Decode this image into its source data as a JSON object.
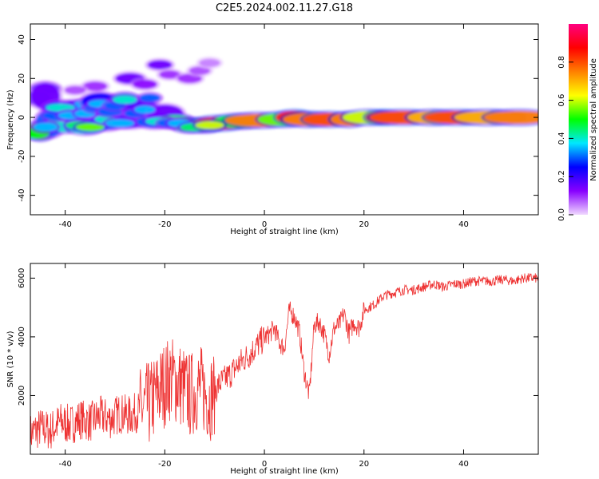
{
  "title": "C2E5.2024.002.11.27.G18",
  "chart_data": [
    {
      "type": "heatmap",
      "xlabel": "Height of straight line (km)",
      "ylabel": "Frequency (Hz)",
      "xlim": [
        -47,
        55
      ],
      "ylim": [
        -50,
        48
      ],
      "xticks": [
        -40,
        -20,
        0,
        20,
        40
      ],
      "yticks": [
        -40,
        -20,
        0,
        20,
        40
      ],
      "colorbar": {
        "label": "Normalized spectral amplitude",
        "range": [
          0,
          1
        ],
        "ticks": [
          0.0,
          0.2,
          0.4,
          0.6,
          0.8
        ],
        "colors": [
          "#f0d8ff",
          "#8800ff",
          "#0000ff",
          "#00e8ff",
          "#00ff00",
          "#ffff00",
          "#ff8000",
          "#ff0000",
          "#ff0080"
        ]
      },
      "band": [
        {
          "x": -45,
          "y": -7,
          "w": 1.5,
          "h": 3,
          "v": 0.55
        },
        {
          "x": -44,
          "y": 11,
          "w": 1.5,
          "h": 5,
          "v": 0.15
        },
        {
          "x": -43,
          "y": -3,
          "w": 1.5,
          "h": 5,
          "v": 0.3
        },
        {
          "x": -41,
          "y": 5,
          "w": 1.8,
          "h": 2,
          "v": 0.3
        },
        {
          "x": -40,
          "y": -3,
          "w": 2,
          "h": 3,
          "v": 0.4
        },
        {
          "x": -38,
          "y": 3,
          "w": 2,
          "h": 4,
          "v": 0.2
        },
        {
          "x": -36,
          "y": -5,
          "w": 2,
          "h": 2,
          "v": 0.4
        },
        {
          "x": -35,
          "y": 5,
          "w": 2,
          "h": 3,
          "v": 0.35
        },
        {
          "x": -33,
          "y": 8,
          "w": 2,
          "h": 3,
          "v": 0.25
        },
        {
          "x": -32,
          "y": -3,
          "w": 2,
          "h": 2,
          "v": 0.3
        },
        {
          "x": -30,
          "y": 3,
          "w": 2,
          "h": 4,
          "v": 0.3
        },
        {
          "x": -28,
          "y": 9,
          "w": 1.5,
          "h": 2,
          "v": 0.4
        },
        {
          "x": -27,
          "y": -2,
          "w": 2,
          "h": 2,
          "v": 0.2
        },
        {
          "x": -25,
          "y": 5,
          "w": 2,
          "h": 3,
          "v": 0.2
        },
        {
          "x": -22,
          "y": -2,
          "w": 2,
          "h": 2,
          "v": 0.3
        },
        {
          "x": -20,
          "y": 2,
          "w": 2,
          "h": 3,
          "v": 0.15
        },
        {
          "x": -18,
          "y": -2,
          "w": 2,
          "h": 2,
          "v": 0.45
        },
        {
          "x": -15,
          "y": -4,
          "w": 2,
          "h": 2,
          "v": 0.45
        },
        {
          "x": -12,
          "y": -4,
          "w": 2,
          "h": 2,
          "v": 0.55
        },
        {
          "x": -9,
          "y": -3,
          "w": 3,
          "h": 2,
          "v": 0.8
        },
        {
          "x": -5,
          "y": -2,
          "w": 3,
          "h": 2,
          "v": 0.5
        },
        {
          "x": -1,
          "y": -1.5,
          "w": 4,
          "h": 2,
          "v": 0.75
        },
        {
          "x": 4,
          "y": -1,
          "w": 3,
          "h": 2,
          "v": 0.55
        },
        {
          "x": 6,
          "y": 0,
          "w": 2,
          "h": 2,
          "v": 0.85
        },
        {
          "x": 9,
          "y": -1,
          "w": 3,
          "h": 2,
          "v": 0.75
        },
        {
          "x": 13,
          "y": -1,
          "w": 3,
          "h": 2,
          "v": 0.8
        },
        {
          "x": 17,
          "y": -1,
          "w": 2,
          "h": 2,
          "v": 0.75
        },
        {
          "x": 21,
          "y": 0,
          "w": 3,
          "h": 2,
          "v": 0.6
        },
        {
          "x": 24,
          "y": 0,
          "w": 2,
          "h": 2,
          "v": 0.85
        },
        {
          "x": 28,
          "y": 0,
          "w": 4,
          "h": 2,
          "v": 0.8
        },
        {
          "x": 34,
          "y": 0,
          "w": 3,
          "h": 2,
          "v": 0.7
        },
        {
          "x": 39,
          "y": 0,
          "w": 4,
          "h": 2,
          "v": 0.8
        },
        {
          "x": 45,
          "y": 0,
          "w": 4,
          "h": 2,
          "v": 0.7
        },
        {
          "x": 51,
          "y": 0,
          "w": 4,
          "h": 2,
          "v": 0.75
        }
      ],
      "blobs": [
        {
          "x": -46,
          "y": -8,
          "w": 1.5,
          "h": 1.5,
          "v": 0.5
        },
        {
          "x": -44,
          "y": -5,
          "w": 1.2,
          "h": 1.2,
          "v": 0.35
        },
        {
          "x": -42,
          "y": 1,
          "w": 1.2,
          "h": 1.2,
          "v": 0.3
        },
        {
          "x": -41,
          "y": 5,
          "w": 1.5,
          "h": 1,
          "v": 0.4
        },
        {
          "x": -39,
          "y": 1,
          "w": 1.2,
          "h": 1,
          "v": 0.35
        },
        {
          "x": -37,
          "y": -4,
          "w": 1.5,
          "h": 1,
          "v": 0.45
        },
        {
          "x": -36,
          "y": 2,
          "w": 1,
          "h": 1,
          "v": 0.35
        },
        {
          "x": -35,
          "y": -5,
          "w": 1.5,
          "h": 1,
          "v": 0.55
        },
        {
          "x": -34,
          "y": 5,
          "w": 1,
          "h": 1,
          "v": 0.3
        },
        {
          "x": -33,
          "y": 7,
          "w": 1.2,
          "h": 1,
          "v": 0.35
        },
        {
          "x": -32,
          "y": -1,
          "w": 1,
          "h": 1,
          "v": 0.4
        },
        {
          "x": -31,
          "y": 3,
          "w": 1.2,
          "h": 1,
          "v": 0.3
        },
        {
          "x": -30,
          "y": 6,
          "w": 1,
          "h": 1,
          "v": 0.3
        },
        {
          "x": -29,
          "y": -3,
          "w": 1.5,
          "h": 1,
          "v": 0.35
        },
        {
          "x": -28,
          "y": 9,
          "w": 1.2,
          "h": 1,
          "v": 0.4
        },
        {
          "x": -26,
          "y": 2,
          "w": 1,
          "h": 1,
          "v": 0.3
        },
        {
          "x": -24,
          "y": 4,
          "w": 1,
          "h": 1,
          "v": 0.35
        },
        {
          "x": -23,
          "y": 10,
          "w": 1,
          "h": 1,
          "v": 0.3
        },
        {
          "x": -21,
          "y": -2,
          "w": 1.5,
          "h": 1,
          "v": 0.4
        },
        {
          "x": -19,
          "y": -3,
          "w": 1.2,
          "h": 1,
          "v": 0.3
        },
        {
          "x": -17,
          "y": -3,
          "w": 1.2,
          "h": 1,
          "v": 0.35
        },
        {
          "x": -14,
          "y": -5,
          "w": 1.5,
          "h": 1,
          "v": 0.45
        },
        {
          "x": -11,
          "y": -4,
          "w": 1.5,
          "h": 1,
          "v": 0.6
        }
      ],
      "sparse": [
        {
          "x": -27,
          "y": 20,
          "w": 1.5,
          "h": 1.5,
          "v": 0.15
        },
        {
          "x": -24,
          "y": 17,
          "w": 1.2,
          "h": 1.2,
          "v": 0.12
        },
        {
          "x": -21,
          "y": 27,
          "w": 1.2,
          "h": 1.2,
          "v": 0.15
        },
        {
          "x": -19,
          "y": 22,
          "w": 1,
          "h": 1,
          "v": 0.1
        },
        {
          "x": -15,
          "y": 20,
          "w": 1.2,
          "h": 1.2,
          "v": 0.1
        },
        {
          "x": -13,
          "y": 24,
          "w": 1,
          "h": 1,
          "v": 0.08
        },
        {
          "x": -11,
          "y": 28,
          "w": 1,
          "h": 1,
          "v": 0.05
        },
        {
          "x": -34,
          "y": 16,
          "w": 1.2,
          "h": 1.2,
          "v": 0.1
        },
        {
          "x": -38,
          "y": 14,
          "w": 1,
          "h": 1,
          "v": 0.08
        },
        {
          "x": -44,
          "y": 15,
          "w": 1.5,
          "h": 1.5,
          "v": 0.2
        },
        {
          "x": -46,
          "y": 10,
          "w": 1.5,
          "h": 2,
          "v": 0.2
        }
      ]
    },
    {
      "type": "line",
      "xlabel": "Height of straight line (km)",
      "ylabel": "SNR (10 * v/v)",
      "xlim": [
        -47,
        55
      ],
      "ylim": [
        0,
        6500
      ],
      "xticks": [
        -40,
        -20,
        0,
        20,
        40
      ],
      "yticks": [
        2000,
        4000,
        6000
      ],
      "color": "#ee3333",
      "series": [
        {
          "x": [
            -47,
            -45,
            -43,
            -41,
            -39,
            -37,
            -35,
            -33,
            -31,
            -29,
            -27,
            -25,
            -23,
            -21,
            -19,
            -17,
            -15,
            -13,
            -11,
            -9,
            -7,
            -5,
            -3,
            -1,
            1,
            2,
            3,
            4,
            5,
            6,
            7,
            8,
            9,
            10,
            11,
            12,
            13,
            14,
            15,
            16,
            17,
            18,
            19,
            20,
            22,
            24,
            26,
            28,
            30,
            32,
            34,
            36,
            38,
            40,
            42,
            44,
            46,
            48,
            50,
            52,
            55
          ],
          "y": [
            700,
            900,
            800,
            1100,
            1000,
            1200,
            1100,
            1300,
            1200,
            1400,
            1300,
            1500,
            1700,
            2200,
            2600,
            2400,
            2000,
            2300,
            1900,
            2400,
            2700,
            3100,
            3400,
            3800,
            4100,
            4300,
            3800,
            3600,
            4900,
            4700,
            4200,
            2800,
            2000,
            4400,
            4500,
            4100,
            3400,
            4300,
            4400,
            4800,
            4100,
            4500,
            4300,
            4900,
            5100,
            5400,
            5500,
            5600,
            5600,
            5700,
            5800,
            5700,
            5800,
            5800,
            5900,
            5900,
            5900,
            5950,
            5900,
            6000,
            6000
          ]
        }
      ]
    }
  ]
}
